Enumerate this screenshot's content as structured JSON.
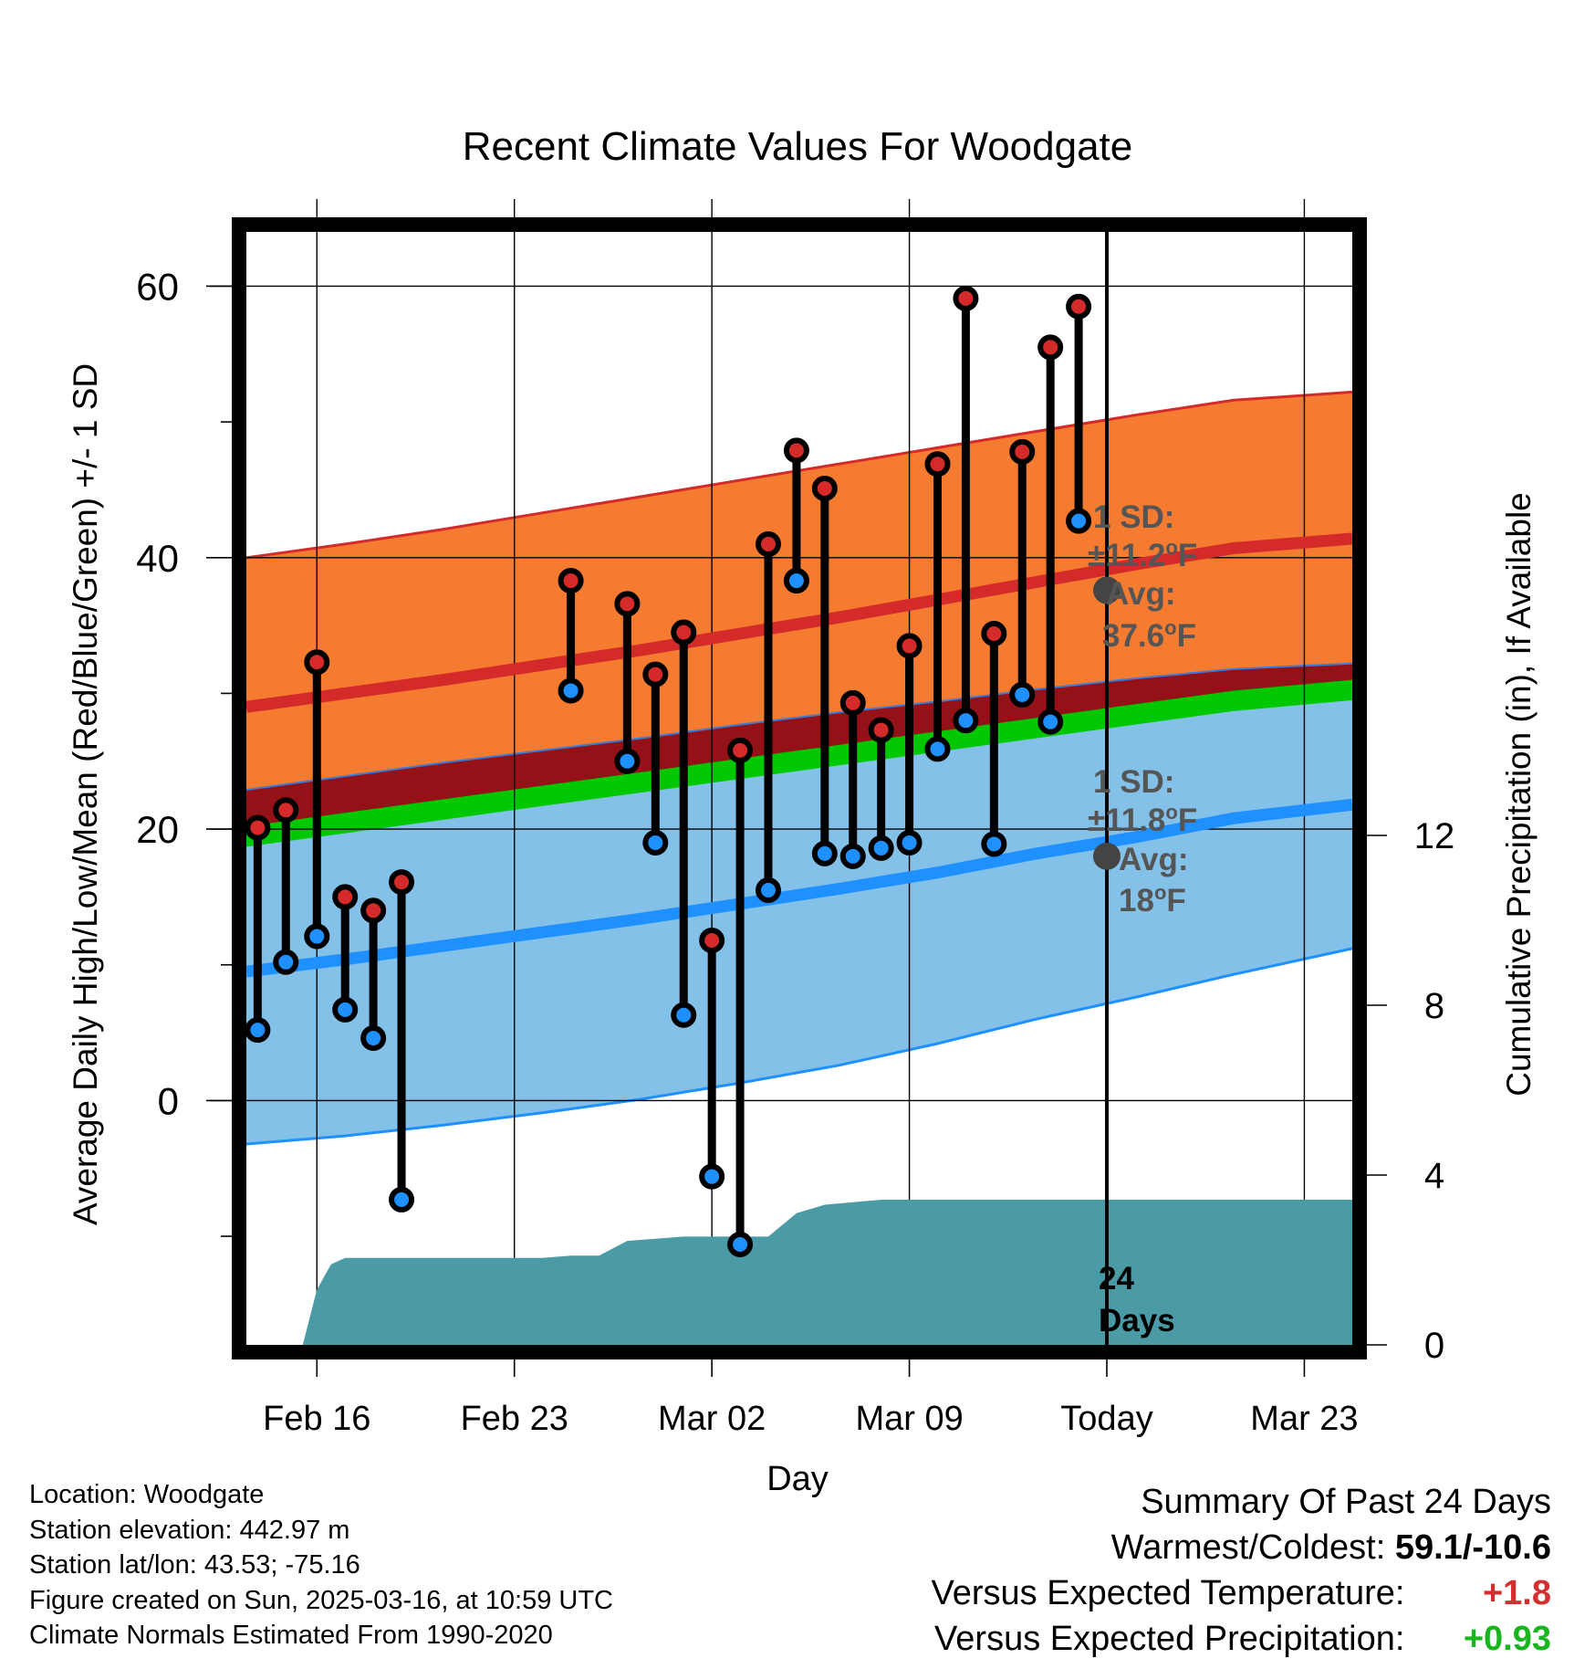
{
  "chart_data": {
    "type": "line",
    "title": "Recent Climate Values For Woodgate",
    "xlabel": "Day",
    "ylabel": "Average Daily High/Low/Mean (Red/Blue/Green) +/- 1 SD",
    "y2label": "Cumulative Precipitation (in), If Available",
    "x_ticks": [
      {
        "day": 2,
        "label": "Feb 16"
      },
      {
        "day": 9,
        "label": "Feb 23"
      },
      {
        "day": 16,
        "label": "Mar 02"
      },
      {
        "day": 23,
        "label": "Mar 09"
      },
      {
        "day": 30,
        "label": "Today"
      },
      {
        "day": 37,
        "label": "Mar 23"
      }
    ],
    "xlim": [
      -0.5,
      38.7
    ],
    "ylim": [
      -18,
      64
    ],
    "y_ticks": [
      0,
      20,
      40,
      60
    ],
    "y2lim": [
      0,
      20.6
    ],
    "y2_ticks": [
      0,
      4,
      8,
      12
    ],
    "grid": true,
    "normals_x": [
      -0.5,
      3,
      6.5,
      10,
      13.5,
      17,
      20.5,
      24,
      27.5,
      31,
      34.5,
      38.7
    ],
    "normal_high": {
      "mean": [
        29.0,
        30.0,
        31.0,
        32.1,
        33.2,
        34.4,
        35.6,
        36.9,
        38.2,
        39.5,
        40.7,
        41.4
      ],
      "upper": [
        40.0,
        41.0,
        42.1,
        43.3,
        44.5,
        45.7,
        46.9,
        48.1,
        49.3,
        50.5,
        51.6,
        52.2
      ],
      "lower": [
        22.9,
        23.9,
        24.9,
        25.8,
        26.7,
        27.7,
        28.6,
        29.4,
        30.3,
        31.1,
        31.8,
        32.2
      ]
    },
    "normal_mean": {
      "upper": [
        20.2,
        21.2,
        22.2,
        23.2,
        24.2,
        25.2,
        26.2,
        27.2,
        28.2,
        29.2,
        30.2,
        31.0
      ],
      "lower": [
        18.7,
        19.7,
        20.7,
        21.7,
        22.7,
        23.7,
        24.7,
        25.7,
        26.7,
        27.7,
        28.7,
        29.5
      ]
    },
    "normal_low": {
      "mean": [
        9.5,
        10.4,
        11.4,
        12.4,
        13.4,
        14.5,
        15.6,
        16.8,
        18.2,
        19.4,
        20.8,
        21.8
      ],
      "upper": [
        18.8,
        19.8,
        20.8,
        21.8,
        22.8,
        23.8,
        24.8,
        25.8,
        26.8,
        27.8,
        28.8,
        30.6
      ],
      "lower": [
        -3.2,
        -2.6,
        -1.8,
        -0.9,
        0.1,
        1.3,
        2.6,
        4.2,
        6.0,
        7.6,
        9.3,
        11.2
      ]
    },
    "daily": [
      {
        "day": -0.1,
        "high": 20.1,
        "low": 5.2
      },
      {
        "day": 0.9,
        "high": 21.4,
        "low": 10.2
      },
      {
        "day": 2.0,
        "high": 32.3,
        "low": 12.1
      },
      {
        "day": 3.0,
        "high": 15.0,
        "low": 6.7
      },
      {
        "day": 4.0,
        "high": 14.0,
        "low": 4.6
      },
      {
        "day": 5.0,
        "high": 16.1,
        "low": -7.3
      },
      {
        "day": 11.0,
        "high": 38.3,
        "low": 30.2
      },
      {
        "day": 13.0,
        "high": 36.6,
        "low": 25.0
      },
      {
        "day": 14.0,
        "high": 31.4,
        "low": 19.0
      },
      {
        "day": 15.0,
        "high": 34.5,
        "low": 6.3
      },
      {
        "day": 16.0,
        "high": 11.8,
        "low": -5.6
      },
      {
        "day": 17.0,
        "high": 25.8,
        "low": -10.6
      },
      {
        "day": 18.0,
        "high": 41.0,
        "low": 15.5
      },
      {
        "day": 19.0,
        "high": 47.9,
        "low": 38.3
      },
      {
        "day": 20.0,
        "high": 45.1,
        "low": 18.2
      },
      {
        "day": 21.0,
        "high": 29.3,
        "low": 18.0
      },
      {
        "day": 22.0,
        "high": 27.3,
        "low": 18.6
      },
      {
        "day": 23.0,
        "high": 33.5,
        "low": 19.0
      },
      {
        "day": 24.0,
        "high": 46.9,
        "low": 25.9
      },
      {
        "day": 25.0,
        "high": 59.1,
        "low": 28.0
      },
      {
        "day": 26.0,
        "high": 34.4,
        "low": 18.9
      },
      {
        "day": 27.0,
        "high": 47.8,
        "low": 29.9
      },
      {
        "day": 28.0,
        "high": 55.5,
        "low": 27.9
      },
      {
        "day": 29.0,
        "high": 58.5,
        "low": 42.7
      }
    ],
    "precip": [
      {
        "day": 1.5,
        "value": 0.0
      },
      {
        "day": 2.0,
        "value": 1.3
      },
      {
        "day": 2.5,
        "value": 1.9
      },
      {
        "day": 3.0,
        "value": 2.05
      },
      {
        "day": 10.0,
        "value": 2.05
      },
      {
        "day": 11.0,
        "value": 2.1
      },
      {
        "day": 12.0,
        "value": 2.1
      },
      {
        "day": 13.0,
        "value": 2.45
      },
      {
        "day": 15.0,
        "value": 2.55
      },
      {
        "day": 17.0,
        "value": 2.55
      },
      {
        "day": 18.0,
        "value": 2.55
      },
      {
        "day": 19.0,
        "value": 3.1
      },
      {
        "day": 20.0,
        "value": 3.3
      },
      {
        "day": 22.0,
        "value": 3.42
      },
      {
        "day": 24.0,
        "value": 3.42
      },
      {
        "day": 38.7,
        "value": 3.42
      }
    ],
    "today_day": 30,
    "annotations": {
      "high_sd_label": "1 SD:",
      "high_sd_value": "±11.2",
      "high_avg_label": "Avg:",
      "high_avg_value": "37.6",
      "low_sd_label": "1 SD:",
      "low_sd_value": "±11.8",
      "low_avg_label": "Avg:",
      "low_avg_value": "18",
      "unit_degree": "o",
      "unit_letter": "F",
      "days_count": "24",
      "days_label": "Days"
    },
    "colors": {
      "high_band": "#f47b30",
      "high_line": "#d42a2a",
      "mean_band": "#00c800",
      "overlap_band": "#941117",
      "low_band": "#84c1e8",
      "low_line": "#1e90ff",
      "precip": "#4a9ba5",
      "high_marker": "#d42a2a",
      "low_marker": "#1e90ff",
      "today_marker": "#444444",
      "annotation_text": "#555555"
    }
  },
  "footer": {
    "location": "Location: Woodgate",
    "elevation": "Station elevation: 442.97 m",
    "latlon": "Station lat/lon: 43.53; -75.16",
    "created": "Figure created on Sun, 2025-03-16, at 10:59 UTC",
    "normals": "Climate Normals Estimated From 1990-2020"
  },
  "summary": {
    "title": "Summary Of Past 24 Days",
    "warm_cold_label": "Warmest/Coldest:",
    "warm_cold_value": "59.1/-10.6",
    "temp_label": "Versus Expected Temperature:",
    "temp_value": "+1.8",
    "precip_label": "Versus Expected Precipitation:",
    "precip_value": "+0.93"
  }
}
